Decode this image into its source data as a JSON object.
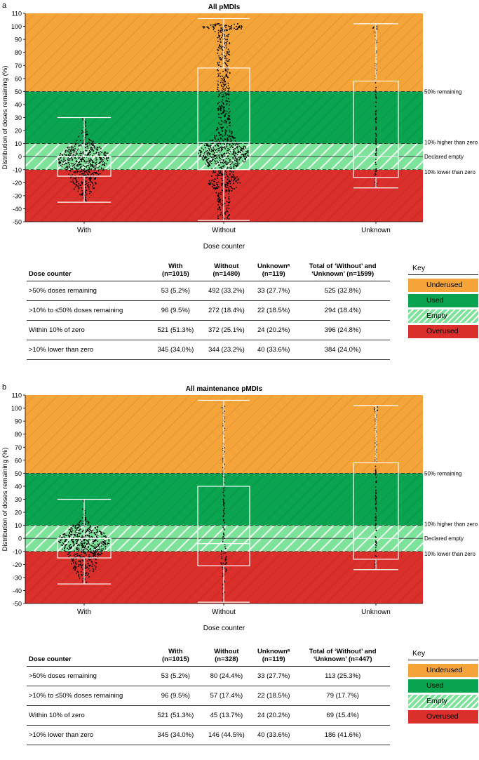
{
  "colors": {
    "underused": "#f5a43a",
    "used": "#0aa350",
    "empty": "#7de39a",
    "overused": "#da2f2b"
  },
  "panels": [
    {
      "id": "a",
      "label": "a",
      "chart_data": {
        "type": "beeswarm-boxplot",
        "title": "All pMDIs",
        "xlabel": "Dose counter",
        "ylabel": "Distribution of doses remaining (%)",
        "ylim": [
          -50,
          110
        ],
        "yticks": [
          -50,
          -40,
          -30,
          -20,
          -10,
          0,
          10,
          20,
          30,
          40,
          50,
          60,
          70,
          80,
          90,
          100,
          110
        ],
        "categories": [
          "With",
          "Without",
          "Unknown"
        ],
        "zones": [
          {
            "name": "Overused",
            "from": -50,
            "to": -10
          },
          {
            "name": "Empty",
            "from": -10,
            "to": 10
          },
          {
            "name": "Used",
            "from": 10,
            "to": 50
          },
          {
            "name": "Underused",
            "from": 50,
            "to": 110
          }
        ],
        "reference_lines": [
          {
            "value": 50,
            "label": "50% remaining"
          },
          {
            "value": 10,
            "label": "10% higher than zero"
          },
          {
            "value": 0,
            "label": "Declared empty"
          },
          {
            "value": -10,
            "label": "10% lower than zero"
          }
        ],
        "boxes": [
          {
            "category": "With",
            "whisker_low": -35,
            "q1": -15,
            "median": 0,
            "q3": 0,
            "whisker_high": 30
          },
          {
            "category": "Without",
            "whisker_low": -49,
            "q1": -10,
            "median": 11,
            "q3": 68,
            "whisker_high": 106
          },
          {
            "category": "Unknown",
            "whisker_low": -24,
            "q1": -16,
            "median": 0,
            "q3": 58,
            "whisker_high": 102
          }
        ]
      },
      "table": {
        "headers": [
          "Dose counter",
          "With\n(n=1015)",
          "Without\n(n=1480)",
          "Unknownᵃ\n(n=119)",
          "Total of ‘Without’ and\n‘Unknown’ (n=1599)"
        ],
        "rows": [
          [
            ">50% doses remaining",
            "53 (5.2%)",
            "492 (33.2%)",
            "33 (27.7%)",
            "525 (32.8%)"
          ],
          [
            ">10% to ≤50% doses remaining",
            "96 (9.5%)",
            "272 (18.4%)",
            "22 (18.5%)",
            "294 (18.4%)"
          ],
          [
            "Within 10% of zero",
            "521 (51.3%)",
            "372 (25.1%)",
            "24 (20.2%)",
            "396 (24.8%)"
          ],
          [
            ">10% lower than zero",
            "345 (34.0%)",
            "344 (23.2%)",
            "40 (33.6%)",
            "384 (24.0%)"
          ]
        ]
      }
    },
    {
      "id": "b",
      "label": "b",
      "chart_data": {
        "type": "beeswarm-boxplot",
        "title": "All maintenance pMDIs",
        "xlabel": "Dose counter",
        "ylabel": "Distribution of doses remaining (%)",
        "ylim": [
          -50,
          110
        ],
        "yticks": [
          -50,
          -40,
          -30,
          -20,
          -10,
          0,
          10,
          20,
          30,
          40,
          50,
          60,
          70,
          80,
          90,
          100,
          110
        ],
        "categories": [
          "With",
          "Without",
          "Unknown"
        ],
        "zones": [
          {
            "name": "Overused",
            "from": -50,
            "to": -10
          },
          {
            "name": "Empty",
            "from": -10,
            "to": 10
          },
          {
            "name": "Used",
            "from": 10,
            "to": 50
          },
          {
            "name": "Underused",
            "from": 50,
            "to": 110
          }
        ],
        "reference_lines": [
          {
            "value": 50,
            "label": "50% remaining"
          },
          {
            "value": 10,
            "label": "10% higher than zero"
          },
          {
            "value": 0,
            "label": "Declared empty"
          },
          {
            "value": -10,
            "label": "10% lower than zero"
          }
        ],
        "boxes": [
          {
            "category": "With",
            "whisker_low": -35,
            "q1": -15,
            "median": 0,
            "q3": 0,
            "whisker_high": 30
          },
          {
            "category": "Without",
            "whisker_low": -49,
            "q1": -21,
            "median": -4,
            "q3": 40,
            "whisker_high": 106
          },
          {
            "category": "Unknown",
            "whisker_low": -24,
            "q1": -16,
            "median": 0,
            "q3": 58,
            "whisker_high": 102
          }
        ]
      },
      "table": {
        "headers": [
          "Dose counter",
          "With\n(n=1015)",
          "Without\n(n=328)",
          "Unknownᵃ\n(n=119)",
          "Total of ‘Without’ and\n‘Unknown’ (n=447)"
        ],
        "rows": [
          [
            ">50% doses remaining",
            "53 (5.2%)",
            "80 (24.4%)",
            "33 (27.7%)",
            "113 (25.3%)"
          ],
          [
            ">10% to ≤50% doses remaining",
            "96 (9.5%)",
            "57 (17.4%)",
            "22 (18.5%)",
            "79 (17.7%)"
          ],
          [
            "Within 10% of zero",
            "521 (51.3%)",
            "45 (13.7%)",
            "24 (20.2%)",
            "69 (15.4%)"
          ],
          [
            ">10% lower than zero",
            "345 (34.0%)",
            "146 (44.5%)",
            "40 (33.6%)",
            "186 (41.6%)"
          ]
        ]
      }
    }
  ],
  "key": {
    "title": "Key",
    "items": [
      {
        "label": "Underused",
        "color": "#f5a43a"
      },
      {
        "label": "Used",
        "color": "#0aa350"
      },
      {
        "label": "Empty",
        "color": "#7de39a"
      },
      {
        "label": "Overused",
        "color": "#da2f2b"
      }
    ]
  }
}
